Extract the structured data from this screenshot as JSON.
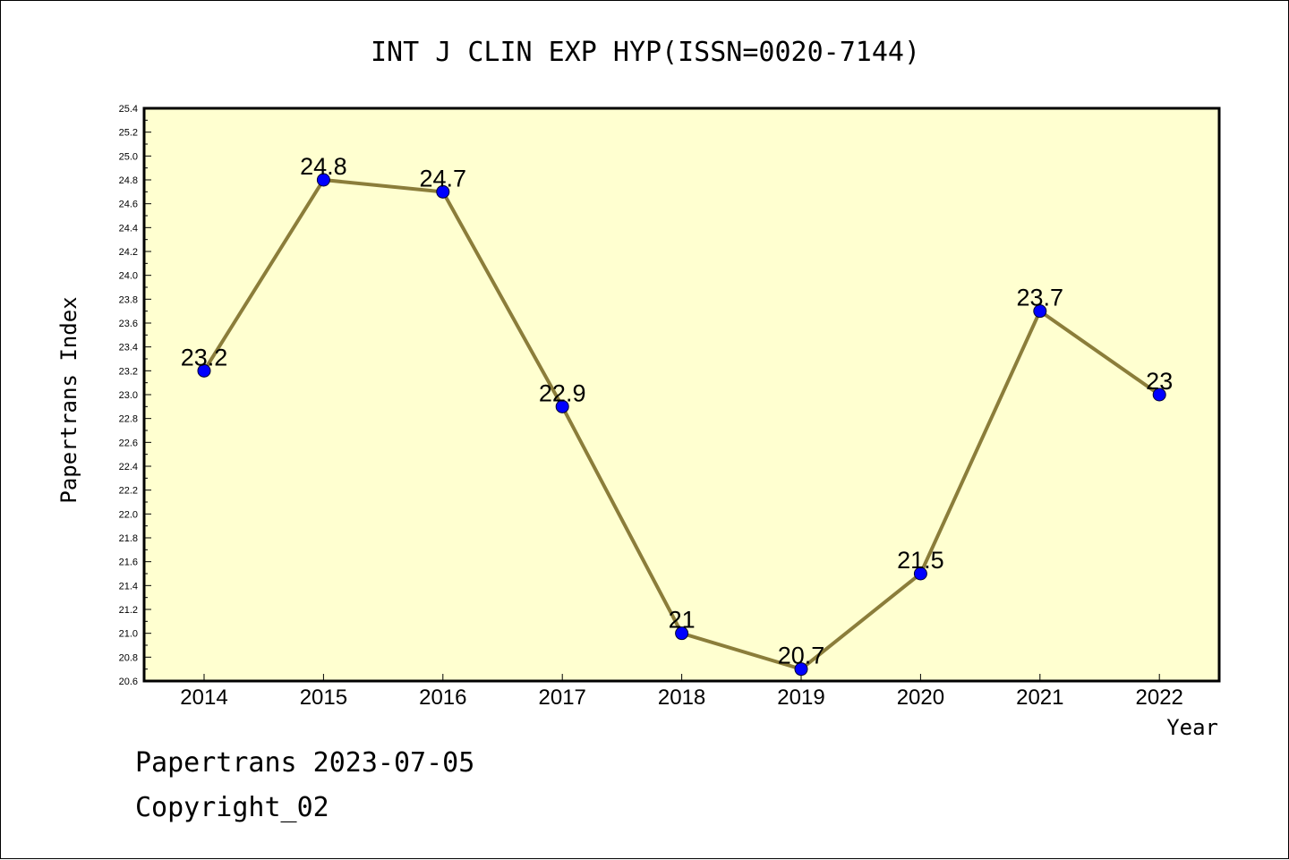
{
  "chart_data": {
    "type": "line",
    "title": "INT J CLIN EXP HYP(ISSN=0020-7144)",
    "xlabel": "Year",
    "ylabel": "Papertrans Index",
    "categories": [
      "2014",
      "2015",
      "2016",
      "2017",
      "2018",
      "2019",
      "2020",
      "2021",
      "2022"
    ],
    "series": [
      {
        "values": [
          23.2,
          24.8,
          24.7,
          22.9,
          21.0,
          20.7,
          21.5,
          23.7,
          23.0
        ],
        "labels": [
          "23.2",
          "24.8",
          "24.7",
          "22.9",
          "21",
          "20.7",
          "21.5",
          "23.7",
          "23"
        ],
        "line_color": "#8b7d3a",
        "marker_color": "#0000ff"
      }
    ],
    "ylim": [
      20.6,
      25.4
    ],
    "yticks": [
      "20.6",
      "20.8",
      "21.0",
      "21.2",
      "21.4",
      "21.6",
      "21.8",
      "22.0",
      "22.2",
      "22.4",
      "22.6",
      "22.8",
      "23.0",
      "23.2",
      "23.4",
      "23.6",
      "23.8",
      "24.0",
      "24.2",
      "24.4",
      "24.6",
      "24.8",
      "25.0",
      "25.2",
      "25.4"
    ],
    "plot_background": "#ffffd0",
    "grid": false,
    "legend": "none"
  },
  "footer": {
    "date_line": "Papertrans 2023-07-05",
    "copyright_line": "Copyright_02"
  }
}
